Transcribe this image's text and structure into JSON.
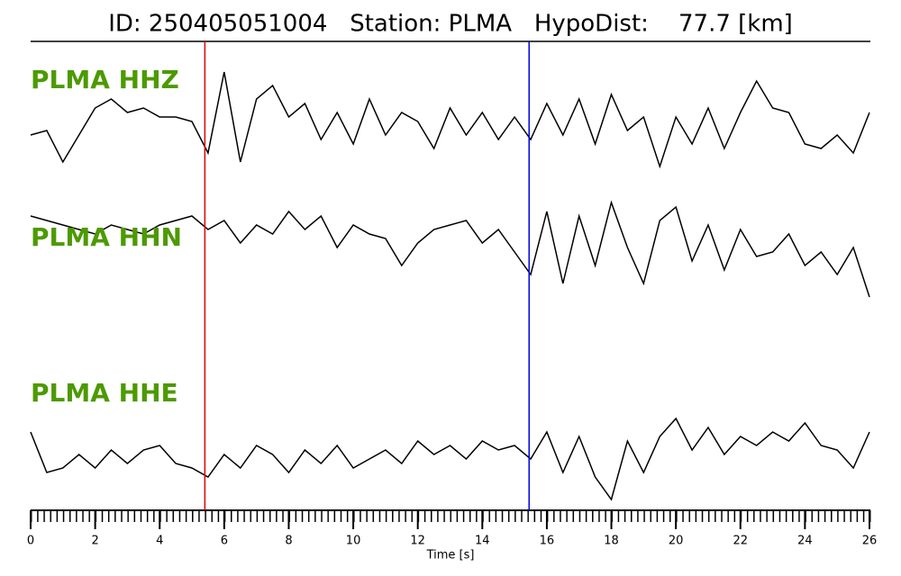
{
  "chart_data": {
    "type": "waveform",
    "title": "ID: 250405051004   Station: PLMA   HypoDist:    77.7 [km]",
    "x_label": "Time [s]",
    "xlim": [
      0,
      26
    ],
    "xticks": [
      0,
      2,
      4,
      6,
      8,
      10,
      12,
      14,
      16,
      18,
      20,
      22,
      24,
      26
    ],
    "x": [
      0,
      0.5,
      1,
      1.5,
      2,
      2.5,
      3,
      3.5,
      4,
      4.5,
      5,
      5.5,
      6,
      6.5,
      7,
      7.5,
      8,
      8.5,
      9,
      9.5,
      10,
      10.5,
      11,
      11.5,
      12,
      12.5,
      13,
      13.5,
      14,
      14.5,
      15,
      15.5,
      16,
      16.5,
      17,
      17.5,
      18,
      18.5,
      19,
      19.5,
      20,
      20.5,
      21,
      21.5,
      22,
      22.5,
      23,
      23.5,
      24,
      24.5,
      25,
      25.5,
      26
    ],
    "series": [
      {
        "name": "PLMA HHZ",
        "color": "#000000",
        "values": [
          -0.2,
          -0.1,
          -0.8,
          -0.2,
          0.4,
          0.6,
          0.3,
          0.4,
          0.2,
          0.2,
          0.1,
          -0.6,
          1.2,
          -0.8,
          0.6,
          0.9,
          0.2,
          0.5,
          -0.3,
          0.3,
          -0.4,
          0.6,
          -0.2,
          0.3,
          0.1,
          -0.5,
          0.4,
          -0.2,
          0.3,
          -0.3,
          0.2,
          -0.3,
          0.5,
          -0.2,
          0.6,
          -0.4,
          0.7,
          -0.1,
          0.2,
          -0.9,
          0.2,
          -0.4,
          0.4,
          -0.5,
          0.3,
          1.0,
          0.4,
          0.3,
          -0.4,
          -0.5,
          -0.2,
          -0.6,
          0.3
        ]
      },
      {
        "name": "PLMA HHN",
        "color": "#000000",
        "values": [
          0.5,
          0.4,
          0.3,
          0.2,
          0.1,
          0.3,
          0.2,
          0.1,
          0.3,
          0.4,
          0.5,
          0.2,
          0.4,
          -0.1,
          0.3,
          0.1,
          0.6,
          0.2,
          0.5,
          -0.2,
          0.3,
          0.1,
          0.0,
          -0.6,
          -0.1,
          0.2,
          0.3,
          0.4,
          -0.1,
          0.2,
          -0.3,
          -0.8,
          0.6,
          -1.0,
          0.5,
          -0.6,
          0.8,
          -0.2,
          -1.0,
          0.4,
          0.7,
          -0.5,
          0.3,
          -0.7,
          0.2,
          -0.4,
          -0.3,
          0.1,
          -0.6,
          -0.3,
          -0.8,
          -0.2,
          -1.3
        ]
      },
      {
        "name": "PLMA HHE",
        "color": "#000000",
        "values": [
          0.6,
          -0.3,
          -0.2,
          0.1,
          -0.2,
          0.2,
          -0.1,
          0.2,
          0.3,
          -0.1,
          -0.2,
          -0.4,
          0.1,
          -0.2,
          0.3,
          0.1,
          -0.3,
          0.2,
          -0.1,
          0.3,
          -0.2,
          0.0,
          0.2,
          -0.1,
          0.4,
          0.1,
          0.3,
          0.0,
          0.4,
          0.2,
          0.3,
          0.0,
          0.6,
          -0.3,
          0.5,
          -0.4,
          -0.9,
          0.4,
          -0.3,
          0.5,
          0.9,
          0.2,
          0.7,
          0.1,
          0.5,
          0.3,
          0.6,
          0.4,
          0.8,
          0.3,
          0.2,
          -0.2,
          0.6
        ]
      }
    ],
    "label_color": "#4c9a00",
    "vlines": [
      {
        "x": 5.4,
        "color": "#e00000"
      },
      {
        "x": 15.45,
        "color": "#0000e0"
      }
    ]
  }
}
